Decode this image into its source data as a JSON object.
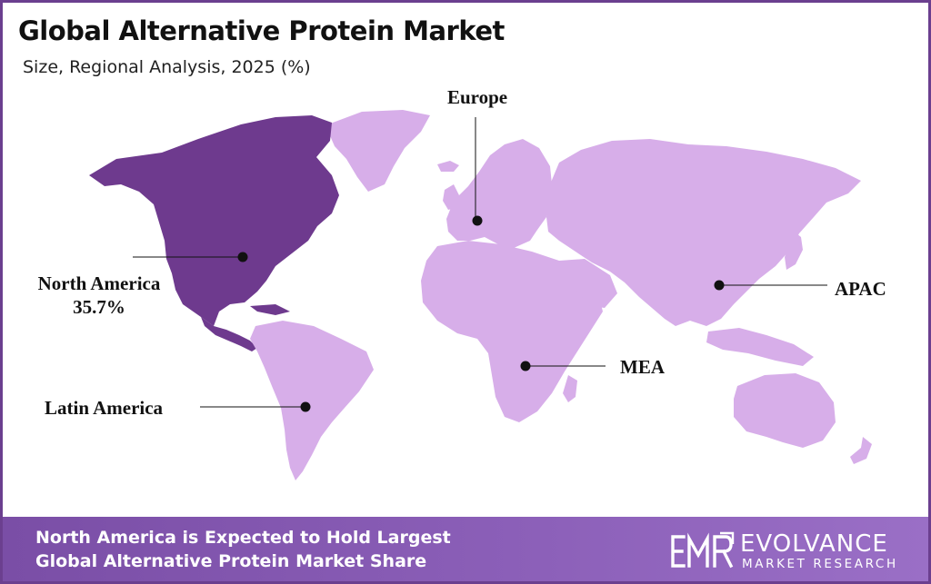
{
  "header": {
    "title": "Global Alternative Protein Market",
    "subtitle": "Size, Regional Analysis, 2025 (%)"
  },
  "colors": {
    "highlight_region": "#6e3a8e",
    "other_regions": "#d7aee9",
    "frame": "#6b3f8f",
    "footer": "#8358ad"
  },
  "map": {
    "highlighted_region": "North America",
    "regions": [
      {
        "id": "north-america",
        "label": "North America",
        "share": "35.7%"
      },
      {
        "id": "europe",
        "label": "Europe"
      },
      {
        "id": "apac",
        "label": "APAC"
      },
      {
        "id": "mea",
        "label": "MEA"
      },
      {
        "id": "latin-america",
        "label": "Latin America"
      }
    ]
  },
  "footer": {
    "line1": "North America is Expected to Hold Largest",
    "line2": "Global Alternative Protein Market Share",
    "brand_name": "EVOLVANCE",
    "brand_sub": "MARKET RESEARCH"
  }
}
